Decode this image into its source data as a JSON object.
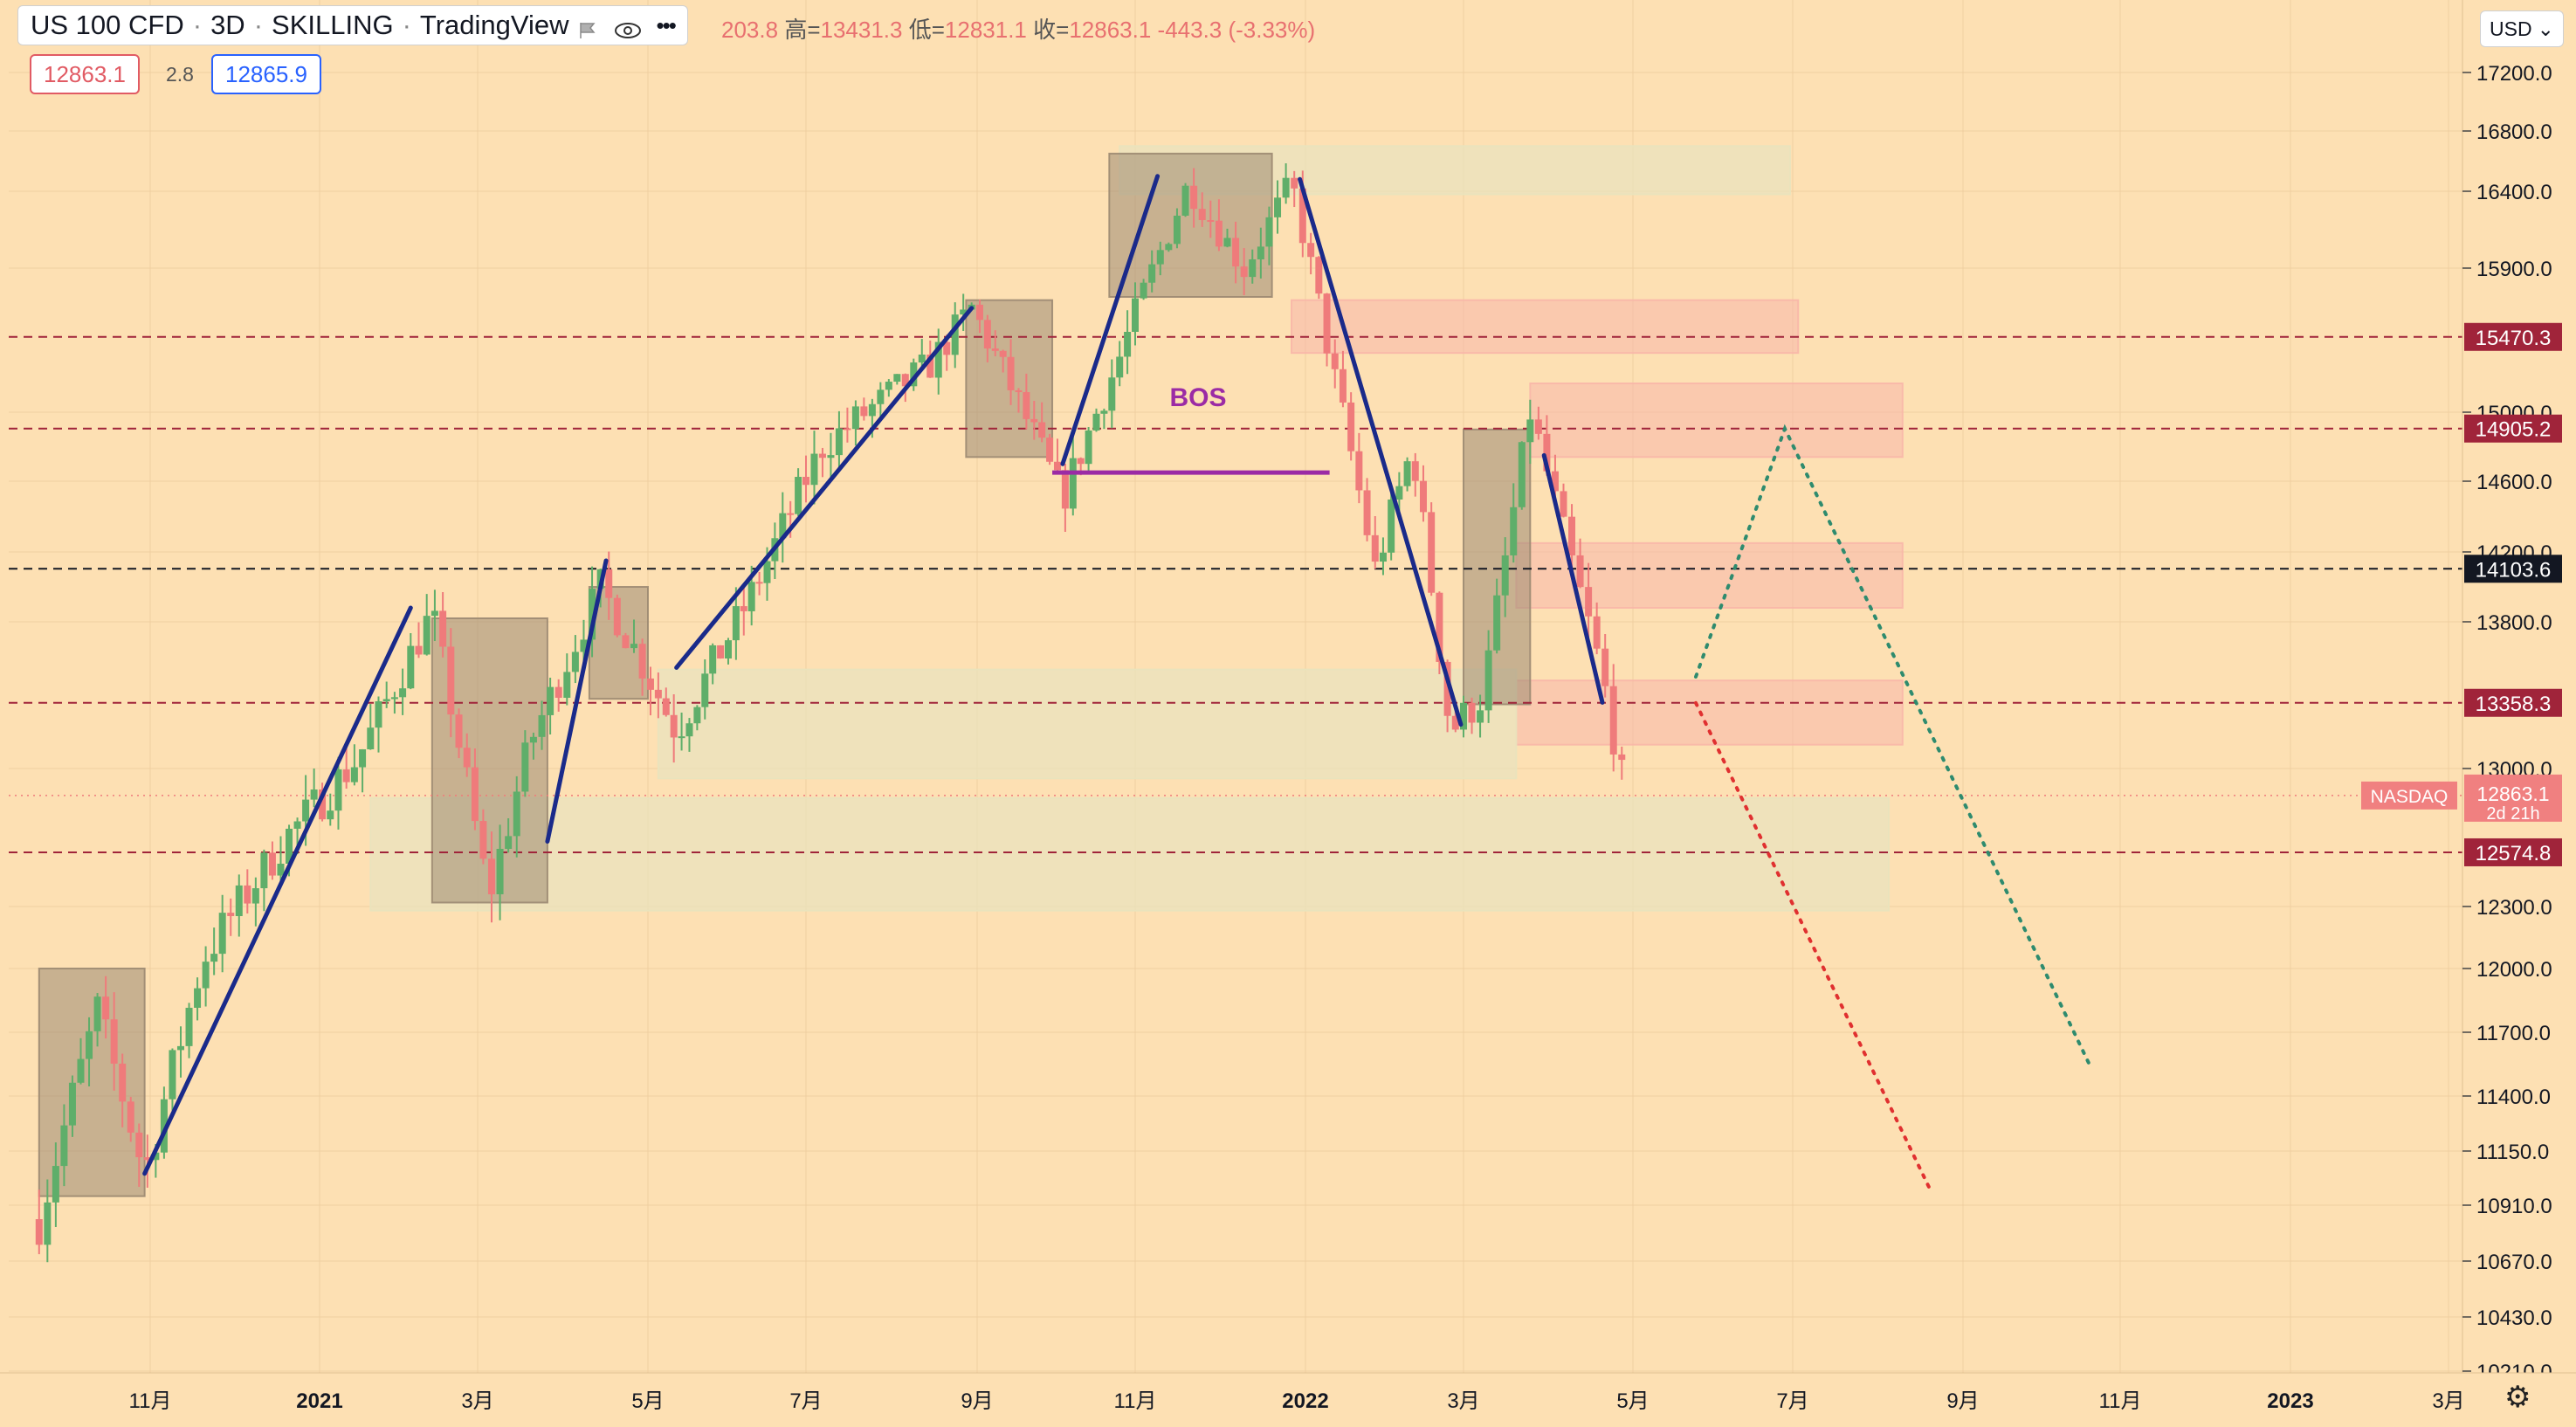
{
  "header": {
    "symbol": "US 100 CFD",
    "interval": "3D",
    "broker": "SKILLING",
    "platform": "TradingView",
    "flag_icon": "flag-icon",
    "eye_icon": "eye-icon",
    "more_icon": "more-icon",
    "ohlc": {
      "open_fragment": "203.8",
      "high_label": "高=",
      "high": "13431.3",
      "low_label": "低=",
      "low": "12831.1",
      "close_label": "收=",
      "close": "12863.1",
      "change": "-443.3 (-3.33%)"
    },
    "sell_price": "12863.1",
    "spread": "2.8",
    "buy_price": "12865.9",
    "currency": "USD"
  },
  "colors": {
    "background": "#fde0b3",
    "up_candle": "#5fae6a",
    "down_candle": "#ef7b7b",
    "trend_line": "#1a2a8a",
    "bos_line": "#9b2ba5",
    "supply_zone": "#f8b7a9",
    "demand_zone": "#e9e3bd",
    "consolidation_box": "#9c8a72",
    "dashed_level": "#a0243a",
    "green_projection": "#2e8b6e",
    "red_projection": "#e03030"
  },
  "chart_data": {
    "type": "candlestick",
    "title": "",
    "ylim": [
      10200,
      17450
    ],
    "y_ticks": [
      10210,
      10430,
      10670,
      10910,
      11150,
      11400,
      11700,
      12000,
      12300,
      13000,
      13800,
      14200,
      14600,
      15000,
      15900,
      16400,
      16800,
      17200
    ],
    "y_tick_labels": [
      "10210.0",
      "10430.0",
      "10670.0",
      "10910.0",
      "11150.0",
      "11400.0",
      "11700.0",
      "12000.0",
      "12300.0",
      "13000.0",
      "13800.0",
      "14200.0",
      "14600.0",
      "15000.0",
      "15900.0",
      "16400.0",
      "16800.0",
      "17200.0"
    ],
    "x_labels": [
      "11月",
      "2021",
      "3月",
      "5月",
      "7月",
      "9月",
      "11月",
      "2022",
      "3月",
      "5月",
      "7月",
      "9月",
      "11月",
      "2023",
      "3月"
    ],
    "x_label_dates": [
      "2020-11-01",
      "2021-01-01",
      "2021-03-01",
      "2021-05-01",
      "2021-07-01",
      "2021-09-01",
      "2021-11-01",
      "2022-01-01",
      "2022-03-01",
      "2022-05-01",
      "2022-07-01",
      "2022-09-01",
      "2022-11-01",
      "2023-01-01",
      "2023-03-01"
    ],
    "bold_x_labels": [
      "2021",
      "2022",
      "2023"
    ],
    "candle_interval": "3D",
    "price_levels": [
      {
        "value": 15470.3,
        "label": "15470.3",
        "style": "dashed",
        "color": "#a0243a"
      },
      {
        "value": 14905.2,
        "label": "14905.2",
        "style": "dashed",
        "color": "#a0243a"
      },
      {
        "value": 14103.6,
        "label": "14103.6",
        "style": "dashed",
        "color": "#131722"
      },
      {
        "value": 13358.3,
        "label": "13358.3",
        "style": "dashed",
        "color": "#a0243a"
      },
      {
        "value": 12574.8,
        "label": "12574.8",
        "style": "dashed",
        "color": "#a0243a"
      }
    ],
    "current_price": {
      "value": 12863.1,
      "label": "12863.1",
      "countdown": "2d 21h",
      "source": "NASDAQ"
    },
    "bos_label": "BOS",
    "bos_level": 14650,
    "candles_anchor": [
      [
        "2020-09-22",
        10850
      ],
      [
        "2020-10-13",
        11800
      ],
      [
        "2020-10-30",
        11050
      ],
      [
        "2020-11-20",
        12050
      ],
      [
        "2020-12-20",
        12650
      ],
      [
        "2021-01-15",
        13050
      ],
      [
        "2021-02-12",
        13850
      ],
      [
        "2021-03-05",
        12350
      ],
      [
        "2021-03-20",
        13150
      ],
      [
        "2021-04-14",
        14000
      ],
      [
        "2021-05-12",
        13200
      ],
      [
        "2021-06-08",
        13900
      ],
      [
        "2021-07-07",
        14800
      ],
      [
        "2021-08-15",
        15300
      ],
      [
        "2021-08-30",
        15650
      ],
      [
        "2021-10-04",
        14500
      ],
      [
        "2021-10-25",
        15300
      ],
      [
        "2021-11-20",
        16450
      ],
      [
        "2021-12-10",
        15900
      ],
      [
        "2021-12-27",
        16450
      ],
      [
        "2022-01-12",
        15200
      ],
      [
        "2022-01-27",
        14100
      ],
      [
        "2022-02-10",
        14800
      ],
      [
        "2022-02-24",
        13200
      ],
      [
        "2022-03-08",
        13400
      ],
      [
        "2022-03-25",
        15000
      ],
      [
        "2022-04-06",
        14300
      ],
      [
        "2022-04-20",
        13500
      ],
      [
        "2022-04-28",
        12863
      ]
    ]
  }
}
